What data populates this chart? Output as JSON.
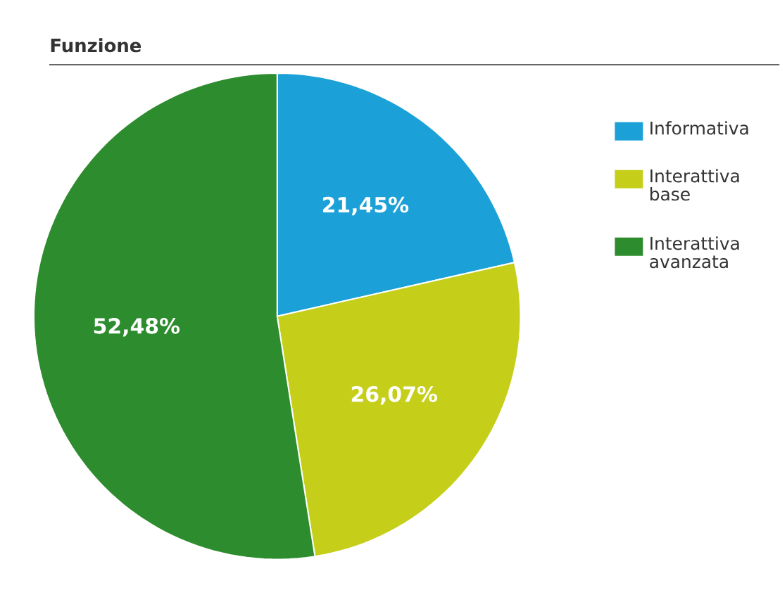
{
  "chart_data": {
    "type": "pie",
    "title": "Funzione",
    "categories": [
      "Informativa",
      "Interattiva base",
      "Interattiva avanzata"
    ],
    "values": [
      21.45,
      26.07,
      52.48
    ],
    "colors": [
      "#1ba1d8",
      "#c5cf1a",
      "#2d8c2d"
    ],
    "value_labels": [
      "21,45%",
      "26,07%",
      "52,48%"
    ],
    "legend": "top right"
  }
}
